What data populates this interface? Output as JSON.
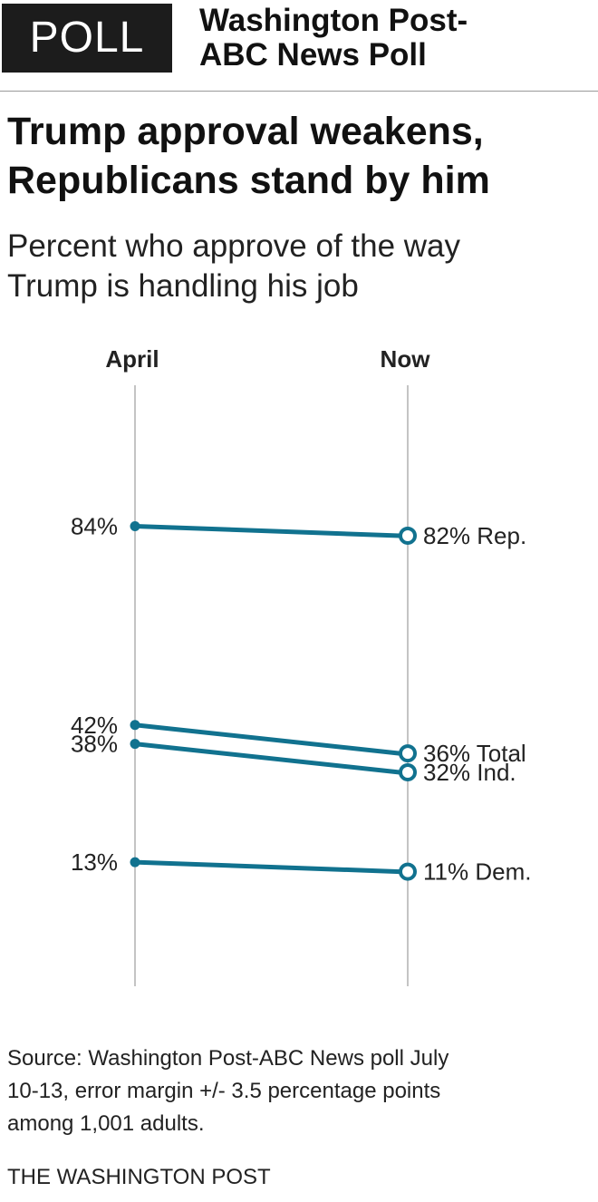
{
  "header": {
    "badge": "POLL",
    "poll_name_line1": "Washington Post-",
    "poll_name_line2": "ABC News Poll"
  },
  "title_line1": "Trump approval weakens,",
  "title_line2": "Republicans stand by him",
  "subtitle_line1": "Percent who approve of the way",
  "subtitle_line2": "Trump is handling his job",
  "chart_data": {
    "type": "line",
    "categories": [
      "April",
      "Now"
    ],
    "series": [
      {
        "name": "Rep.",
        "values": [
          84,
          82
        ],
        "start_label": "84%",
        "end_label": "82% Rep."
      },
      {
        "name": "Total",
        "values": [
          42,
          36
        ],
        "start_label": "42%",
        "end_label": "36% Total"
      },
      {
        "name": "Ind.",
        "values": [
          38,
          32
        ],
        "start_label": "38%",
        "end_label": "32% Ind."
      },
      {
        "name": "Dem.",
        "values": [
          13,
          11
        ],
        "start_label": "13%",
        "end_label": "11% Dem."
      }
    ],
    "line_color": "#11728f",
    "axis_color": "#c4c4c4",
    "ylim": [
      0,
      100
    ]
  },
  "source_line1": "Source: Washington Post-ABC News poll July",
  "source_line2": "10-13, error margin +/- 3.5 percentage points",
  "source_line3": "among 1,001 adults.",
  "credit": "THE WASHINGTON POST"
}
